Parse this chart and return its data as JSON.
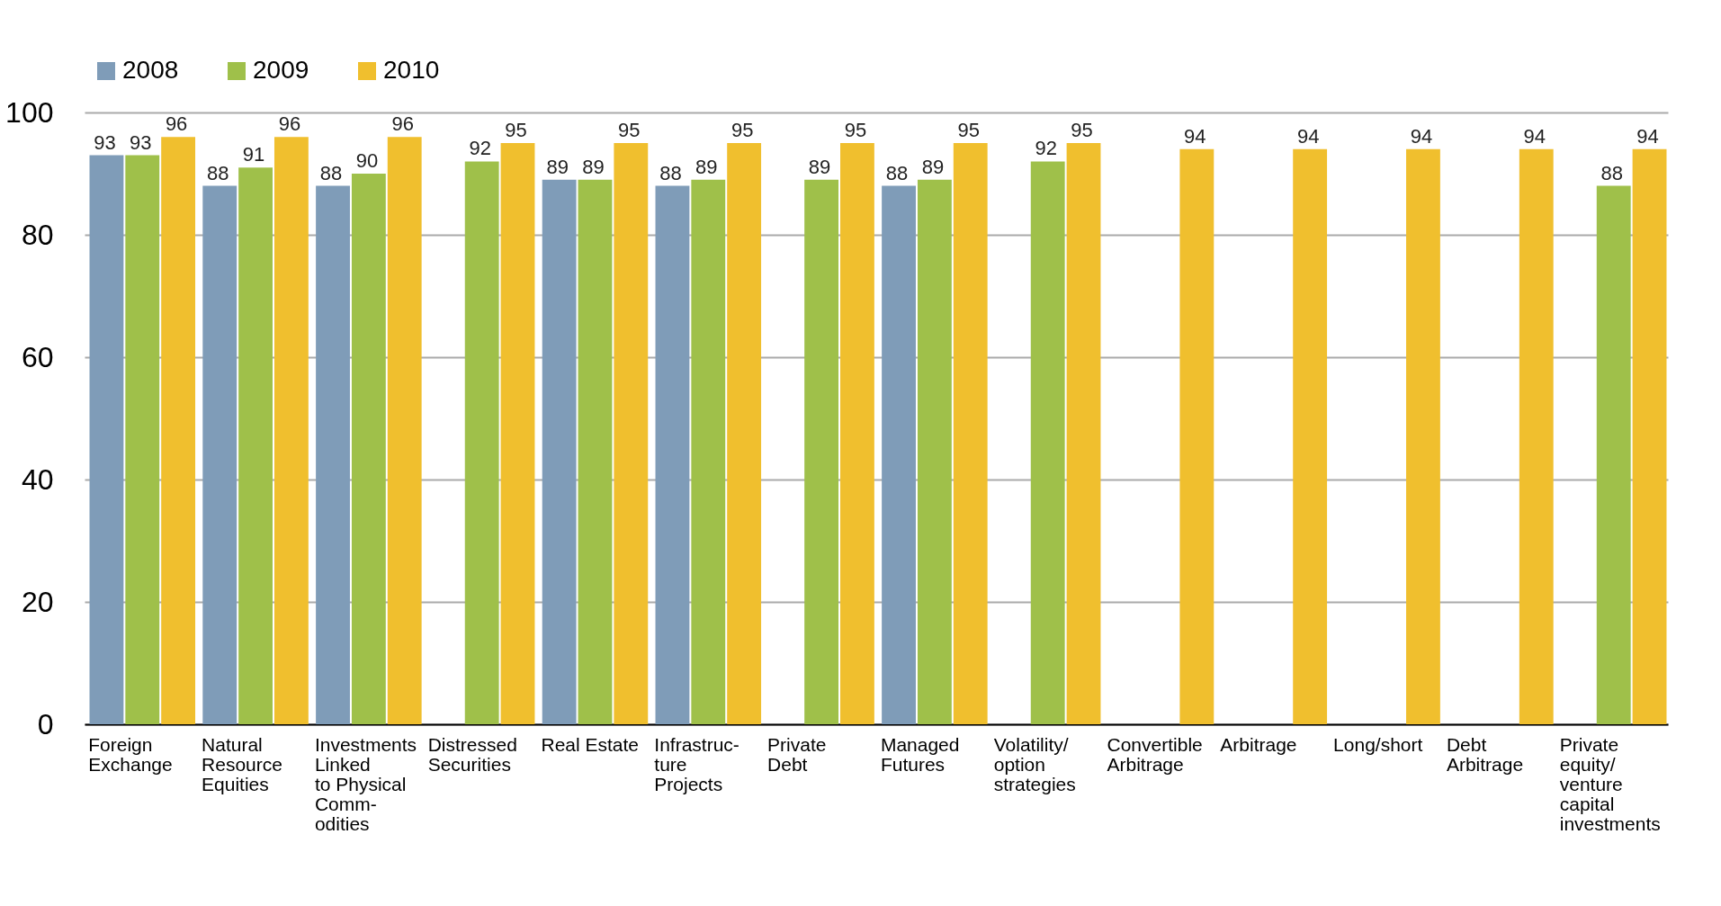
{
  "chart_data": {
    "type": "bar",
    "categories": [
      "Foreign\nExchange",
      "Natural\nResource\nEquities",
      "Investments\nLinked\nto Physical\nComm-\nodities",
      "Distressed\nSecurities",
      "Real Estate",
      "Infrastruc-\nture\nProjects",
      "Private\nDebt",
      "Managed\nFutures",
      "Volatility/\noption\nstrategies",
      "Convertible\nArbitrage",
      "Arbitrage",
      "Long/short",
      "Debt\nArbitrage",
      "Private\nequity/\nventure\ncapital\ninvestments"
    ],
    "series": [
      {
        "name": "2008",
        "color": "#7f9cb8",
        "values": [
          93,
          88,
          88,
          null,
          89,
          88,
          null,
          88,
          null,
          null,
          null,
          null,
          null,
          null
        ]
      },
      {
        "name": "2009",
        "color": "#9fc04a",
        "values": [
          93,
          91,
          90,
          92,
          89,
          89,
          89,
          89,
          92,
          null,
          null,
          null,
          null,
          88
        ]
      },
      {
        "name": "2010",
        "color": "#f0bf2e",
        "values": [
          96,
          96,
          96,
          95,
          95,
          95,
          95,
          95,
          95,
          94,
          94,
          94,
          94,
          94
        ]
      }
    ],
    "ylim": [
      0,
      100
    ],
    "yticks": [
      0,
      20,
      40,
      60,
      80,
      100
    ],
    "grid": "y",
    "legend": "top left",
    "data_labels": true
  }
}
